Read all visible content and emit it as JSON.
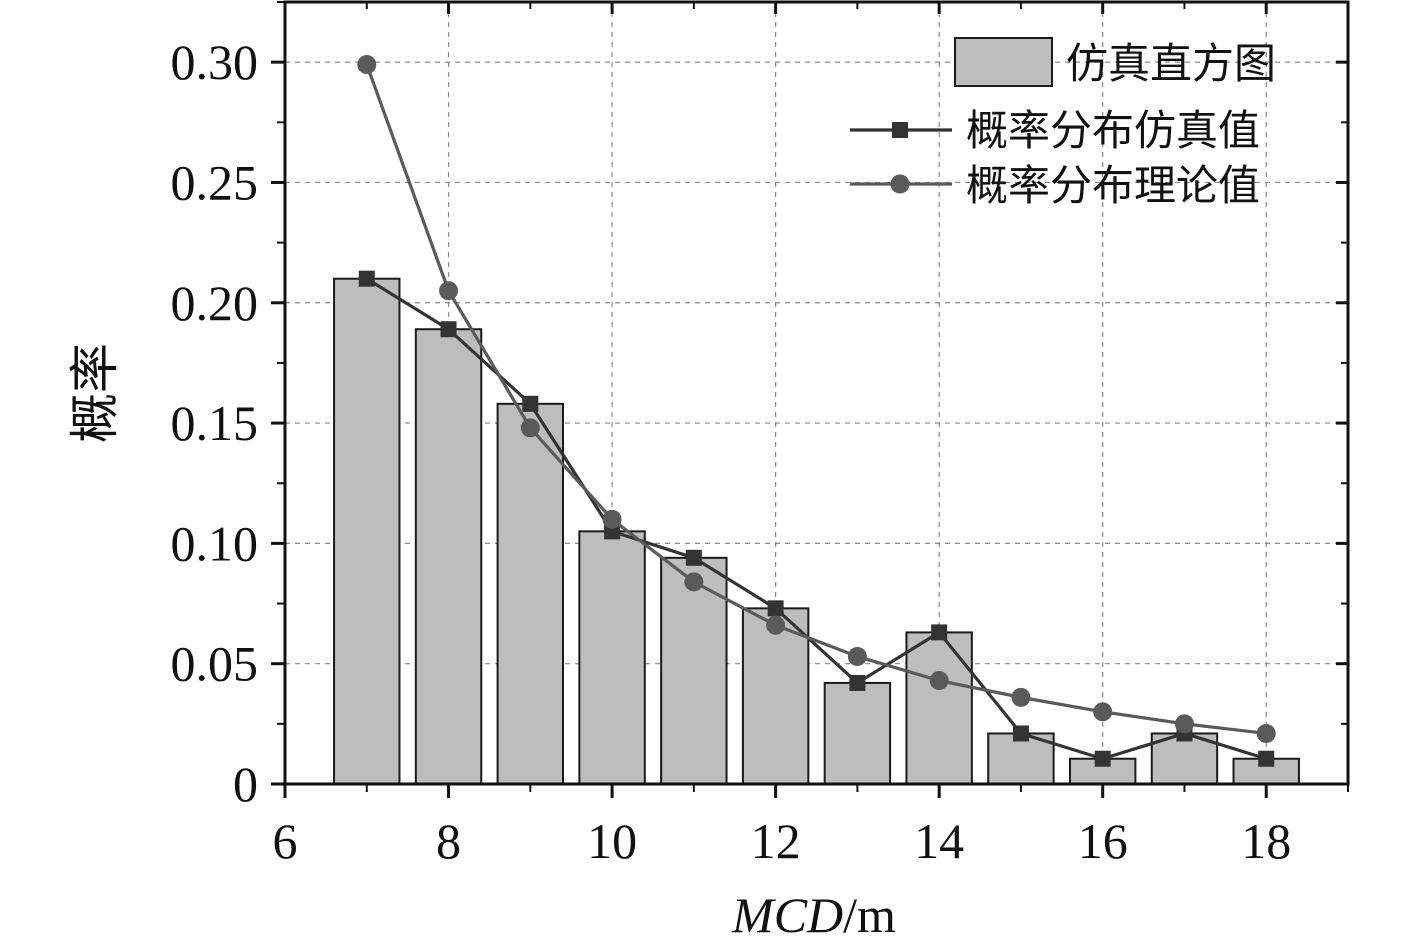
{
  "chart_data": {
    "type": "bar",
    "x": [
      7,
      8,
      9,
      10,
      11,
      12,
      13,
      14,
      15,
      16,
      17,
      18
    ],
    "series": [
      {
        "name": "仿真直方图",
        "kind": "bar",
        "color": "#bdbdbd",
        "values": [
          0.21,
          0.189,
          0.158,
          0.105,
          0.094,
          0.073,
          0.042,
          0.063,
          0.021,
          0.0105,
          0.021,
          0.0105
        ]
      },
      {
        "name": "概率分布仿真值",
        "kind": "line",
        "marker": "square",
        "color": "#333333",
        "values": [
          0.21,
          0.189,
          0.158,
          0.105,
          0.094,
          0.073,
          0.042,
          0.063,
          0.021,
          0.0105,
          0.021,
          0.0105
        ]
      },
      {
        "name": "概率分布理论值",
        "kind": "line",
        "marker": "circle",
        "color": "#5a5a5a",
        "values": [
          0.299,
          0.205,
          0.148,
          0.11,
          0.084,
          0.066,
          0.053,
          0.043,
          0.036,
          0.03,
          0.025,
          0.021
        ]
      }
    ],
    "xlabel_italic": "MCD",
    "xlabel_unit": "/m",
    "ylabel": "概率",
    "xlim": [
      6,
      19
    ],
    "ylim": [
      0,
      0.325
    ],
    "xticks": [
      6,
      8,
      10,
      12,
      14,
      16,
      18
    ],
    "xtick_labels": [
      "6",
      "8",
      "10",
      "12",
      "14",
      "16",
      "18"
    ],
    "yticks": [
      0,
      0.05,
      0.1,
      0.15,
      0.2,
      0.25,
      0.3
    ],
    "ytick_labels": [
      "0",
      "0.05",
      "0.10",
      "0.15",
      "0.20",
      "0.25",
      "0.30"
    ],
    "grid": true,
    "legend_position": "top-right"
  }
}
